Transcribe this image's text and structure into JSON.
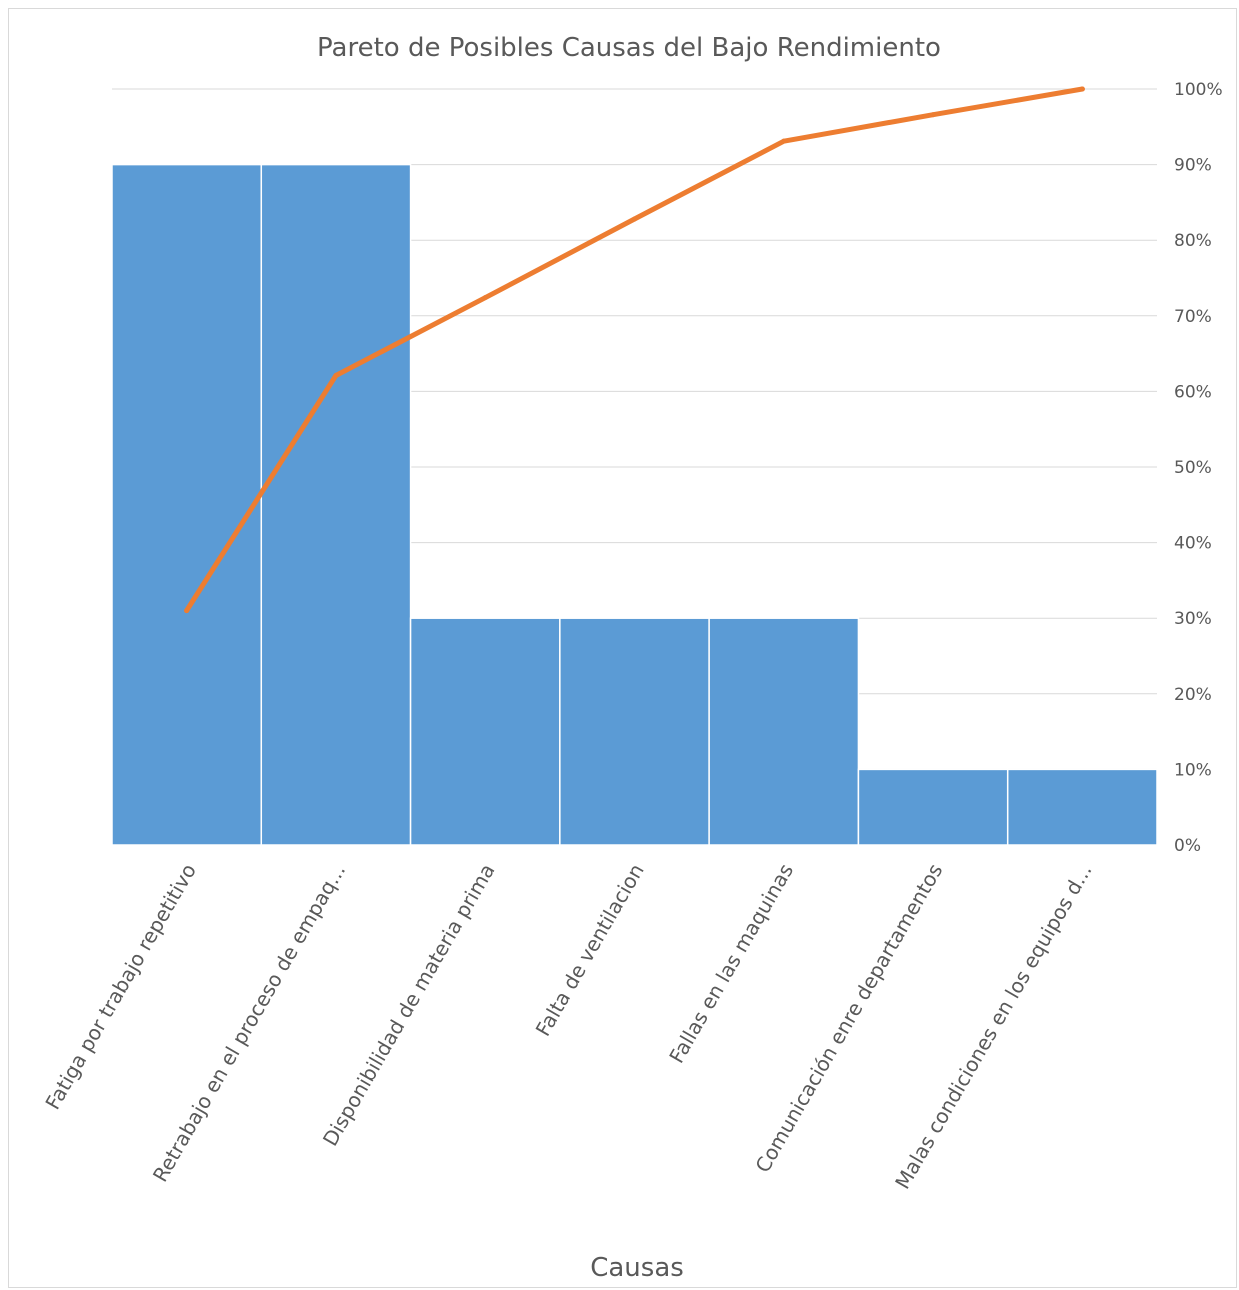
{
  "chart_data": {
    "type": "bar",
    "title": "Pareto de Posibles Causas del Bajo Rendimiento",
    "xlabel": "Causas",
    "ylabel": "",
    "categories": [
      "Fatiga por trabajo repetitivo",
      "Retrabajo en el proceso de empaq...",
      "Disponibilidad de materia prima",
      "Falta de ventilacion",
      "Fallas en las maquinas",
      "Comunicación enre departamentos",
      "Malas condiciones en los equipos d..."
    ],
    "series": [
      {
        "type": "bar",
        "values": [
          9,
          9,
          3,
          3,
          3,
          1,
          1
        ],
        "color": "#5b9bd5"
      },
      {
        "type": "line",
        "axis": "secondary",
        "values": [
          31.0,
          62.1,
          72.4,
          82.8,
          93.1,
          96.6,
          100.0
        ],
        "color": "#ed7d31"
      }
    ],
    "ylim": [
      0,
      10
    ],
    "y2lim": [
      0,
      100
    ],
    "y2ticks": [
      "0%",
      "10%",
      "20%",
      "30%",
      "40%",
      "50%",
      "60%",
      "70%",
      "80%",
      "90%",
      "100%"
    ],
    "grid": true,
    "legend": "none"
  }
}
